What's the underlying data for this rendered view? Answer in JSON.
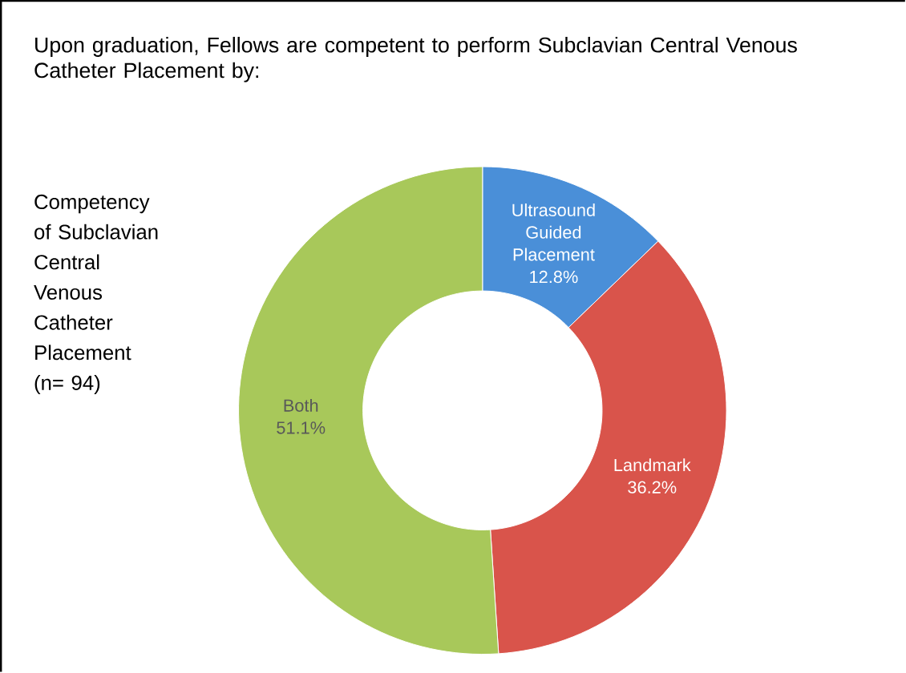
{
  "chart_data": {
    "type": "donut",
    "title": "Upon graduation, Fellows are competent to perform Subclavian Central Venous Catheter Placement by:",
    "annotations": [
      "Competency of Subclavian Central Venous Catheter Placement (n=  94)"
    ],
    "categories": [
      "Ultrasound Guided Placement",
      "Landmark",
      "Both"
    ],
    "values": [
      12.8,
      36.2,
      51.1
    ],
    "value_labels": [
      "12.8%",
      "36.2%",
      "51.1%"
    ],
    "colors": [
      "#4a8fd8",
      "#d9544b",
      "#a8c85a"
    ]
  }
}
